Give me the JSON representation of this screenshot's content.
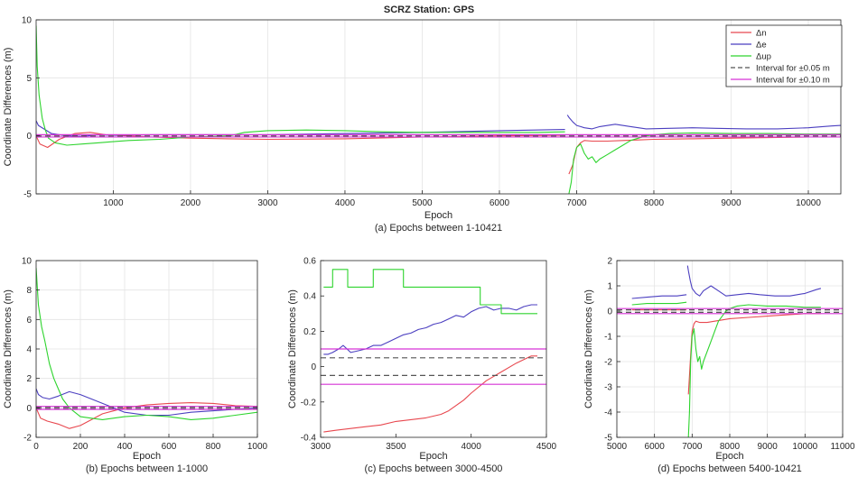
{
  "figure_title": "SCRZ Station: GPS",
  "colors": {
    "dn": "#e8484f",
    "de": "#4b3fc0",
    "dup": "#2ed42e",
    "interval005": "#555555",
    "interval010": "#d633d6",
    "grid": "#e4e4e4",
    "axis": "#262626"
  },
  "legend": {
    "items": [
      {
        "label": "Δn",
        "color": "#e8484f",
        "style": "solid"
      },
      {
        "label": "Δe",
        "color": "#4b3fc0",
        "style": "solid"
      },
      {
        "label": "Δup",
        "color": "#2ed42e",
        "style": "solid"
      },
      {
        "label": "Interval for ±0.05 m",
        "color": "#555555",
        "style": "dashed"
      },
      {
        "label": "Interval for ±0.10 m",
        "color": "#d633d6",
        "style": "solid"
      }
    ],
    "placement": "top-right (panel a)"
  },
  "chart_data": [
    {
      "id": "a",
      "type": "line",
      "caption": "(a) Epochs between 1-10421",
      "xlabel": "Epoch",
      "ylabel": "Coordinate Differences (m)",
      "xlim": [
        1,
        10421
      ],
      "ylim": [
        -5,
        10
      ],
      "xticks": [
        1000,
        2000,
        3000,
        4000,
        5000,
        6000,
        7000,
        8000,
        9000,
        10000
      ],
      "yticks": [
        -5,
        0,
        5,
        10
      ],
      "grid": true,
      "intervals": [
        0.05,
        0.1
      ],
      "series": [
        {
          "name": "Δn",
          "x": [
            1,
            50,
            150,
            300,
            500,
            700,
            900,
            1200,
            1500,
            2000,
            2500,
            3000,
            4000,
            5000,
            6000,
            6850
          ],
          "y": [
            0.0,
            -0.7,
            -1.0,
            -0.3,
            0.2,
            0.3,
            0.1,
            0.0,
            -0.1,
            -0.2,
            -0.25,
            -0.3,
            -0.25,
            -0.1,
            0.0,
            0.05
          ]
        },
        {
          "name": "Δn",
          "x": [
            6900,
            6950,
            7000,
            7050,
            7100,
            7200,
            7400,
            7600,
            7800,
            8000,
            8500,
            9000,
            9500,
            10000,
            10421
          ],
          "y": [
            -3.3,
            -2.5,
            -1.0,
            -0.6,
            -0.4,
            -0.45,
            -0.45,
            -0.4,
            -0.35,
            -0.3,
            -0.25,
            -0.2,
            -0.15,
            -0.1,
            -0.1
          ]
        },
        {
          "name": "Δe",
          "x": [
            1,
            30,
            100,
            200,
            400,
            600,
            800,
            1000,
            1500,
            2000,
            2500,
            3000,
            4000,
            5000,
            6000,
            6850
          ],
          "y": [
            1.3,
            0.9,
            0.6,
            0.2,
            0.0,
            -0.05,
            0.1,
            0.05,
            0.1,
            0.1,
            0.1,
            0.1,
            0.2,
            0.3,
            0.45,
            0.55
          ]
        },
        {
          "name": "Δe",
          "x": [
            6880,
            6900,
            6950,
            7000,
            7050,
            7100,
            7200,
            7300,
            7500,
            7700,
            7900,
            8200,
            8500,
            8800,
            9200,
            9600,
            10000,
            10300,
            10421
          ],
          "y": [
            1.8,
            1.6,
            1.2,
            0.9,
            0.8,
            0.7,
            0.6,
            0.8,
            1.0,
            0.8,
            0.6,
            0.65,
            0.7,
            0.65,
            0.6,
            0.6,
            0.7,
            0.85,
            0.9
          ]
        },
        {
          "name": "Δup",
          "x": [
            1,
            15,
            40,
            80,
            120,
            160,
            250,
            400,
            600,
            800,
            1000,
            1200,
            1600,
            2000,
            2500,
            2700,
            3000,
            3500,
            4000,
            4500,
            5000,
            5500,
            6000,
            6500,
            6850
          ],
          "y": [
            9.5,
            6.0,
            3.5,
            1.5,
            0.5,
            -0.2,
            -0.6,
            -0.8,
            -0.7,
            -0.6,
            -0.5,
            -0.4,
            -0.3,
            -0.1,
            0.0,
            0.3,
            0.45,
            0.5,
            0.45,
            0.35,
            0.3,
            0.3,
            0.3,
            0.3,
            0.35
          ]
        },
        {
          "name": "Δup",
          "x": [
            6900,
            6930,
            6960,
            7000,
            7050,
            7100,
            7150,
            7200,
            7250,
            7300,
            7400,
            7500,
            7600,
            7700,
            7800,
            7900,
            8000,
            8200,
            8500,
            9000,
            9500,
            10000,
            10421
          ],
          "y": [
            -5.0,
            -4.0,
            -2.0,
            -1.0,
            -0.7,
            -1.5,
            -2.0,
            -1.8,
            -2.3,
            -2.0,
            -1.6,
            -1.2,
            -0.8,
            -0.4,
            -0.2,
            0.0,
            0.1,
            0.2,
            0.25,
            0.2,
            0.2,
            0.15,
            0.15
          ]
        }
      ]
    },
    {
      "id": "b",
      "type": "line",
      "caption": "(b) Epochs between 1-1000",
      "xlabel": "Epoch",
      "ylabel": "Coordinate Differences (m)",
      "xlim": [
        0,
        1000
      ],
      "ylim": [
        -2,
        10
      ],
      "xticks": [
        0,
        200,
        400,
        600,
        800,
        1000
      ],
      "yticks": [
        -2,
        0,
        2,
        4,
        6,
        8,
        10
      ],
      "grid": true,
      "intervals": [
        0.05,
        0.1
      ],
      "series": [
        {
          "name": "Δn",
          "x": [
            0,
            20,
            50,
            100,
            150,
            200,
            250,
            300,
            400,
            500,
            600,
            700,
            800,
            900,
            1000
          ],
          "y": [
            0.0,
            -0.7,
            -0.9,
            -1.1,
            -1.4,
            -1.2,
            -0.8,
            -0.4,
            0.0,
            0.2,
            0.3,
            0.35,
            0.3,
            0.15,
            0.1
          ]
        },
        {
          "name": "Δe",
          "x": [
            0,
            10,
            30,
            60,
            100,
            150,
            200,
            250,
            300,
            350,
            400,
            500,
            600,
            700,
            800,
            900,
            1000
          ],
          "y": [
            1.3,
            0.9,
            0.7,
            0.6,
            0.8,
            1.1,
            0.9,
            0.6,
            0.3,
            0.0,
            -0.3,
            -0.5,
            -0.5,
            -0.3,
            -0.2,
            -0.1,
            0.0
          ]
        },
        {
          "name": "Δup",
          "x": [
            0,
            10,
            25,
            40,
            60,
            80,
            100,
            120,
            150,
            200,
            250,
            300,
            400,
            500,
            600,
            700,
            800,
            900,
            1000
          ],
          "y": [
            9.5,
            7.0,
            5.5,
            4.5,
            3.0,
            2.0,
            1.3,
            0.6,
            0.0,
            -0.6,
            -0.7,
            -0.8,
            -0.6,
            -0.5,
            -0.6,
            -0.8,
            -0.7,
            -0.5,
            -0.3
          ]
        }
      ]
    },
    {
      "id": "c",
      "type": "line",
      "caption": "(c) Epochs between 3000-4500",
      "xlabel": "Epoch",
      "ylabel": "Coordinate Differences (m)",
      "xlim": [
        3000,
        4500
      ],
      "ylim": [
        -0.4,
        0.6
      ],
      "xticks": [
        3000,
        3500,
        4000,
        4500
      ],
      "yticks": [
        -0.4,
        -0.2,
        0,
        0.2,
        0.4,
        0.6
      ],
      "grid": false,
      "intervals": [
        0.05,
        0.1
      ],
      "series": [
        {
          "name": "Δn",
          "x": [
            3020,
            3100,
            3200,
            3300,
            3400,
            3500,
            3600,
            3700,
            3800,
            3850,
            3900,
            3950,
            4000,
            4100,
            4200,
            4300,
            4400,
            4440
          ],
          "y": [
            -0.37,
            -0.36,
            -0.35,
            -0.34,
            -0.33,
            -0.31,
            -0.3,
            -0.29,
            -0.27,
            -0.25,
            -0.22,
            -0.19,
            -0.15,
            -0.08,
            -0.03,
            0.02,
            0.06,
            0.06
          ]
        },
        {
          "name": "Δe",
          "x": [
            3020,
            3050,
            3080,
            3120,
            3150,
            3200,
            3250,
            3300,
            3350,
            3400,
            3450,
            3500,
            3550,
            3600,
            3650,
            3700,
            3750,
            3800,
            3850,
            3900,
            3950,
            4000,
            4050,
            4100,
            4150,
            4200,
            4250,
            4300,
            4350,
            4400,
            4440
          ],
          "y": [
            0.07,
            0.07,
            0.08,
            0.1,
            0.12,
            0.08,
            0.09,
            0.1,
            0.12,
            0.12,
            0.14,
            0.16,
            0.18,
            0.19,
            0.21,
            0.22,
            0.24,
            0.25,
            0.27,
            0.29,
            0.28,
            0.31,
            0.33,
            0.34,
            0.32,
            0.33,
            0.33,
            0.32,
            0.34,
            0.35,
            0.35
          ]
        },
        {
          "name": "Δup",
          "step": true,
          "x": [
            3020,
            3080,
            3080,
            3180,
            3180,
            3350,
            3350,
            3550,
            3550,
            3800,
            3800,
            4060,
            4060,
            4200,
            4200,
            4440
          ],
          "y": [
            0.45,
            0.45,
            0.55,
            0.55,
            0.45,
            0.45,
            0.55,
            0.55,
            0.45,
            0.45,
            0.45,
            0.45,
            0.35,
            0.35,
            0.3,
            0.3
          ]
        }
      ]
    },
    {
      "id": "d",
      "type": "line",
      "caption": "(d) Epochs between 5400-10421",
      "xlabel": "Epoch",
      "ylabel": "Coordinate Differences (m)",
      "xlim": [
        5000,
        11000
      ],
      "ylim": [
        -5,
        2
      ],
      "xticks": [
        5000,
        6000,
        7000,
        8000,
        9000,
        10000,
        11000
      ],
      "yticks": [
        -5,
        -4,
        -3,
        -2,
        -1,
        0,
        1,
        2
      ],
      "grid": true,
      "intervals": [
        0.05,
        0.1
      ],
      "series": [
        {
          "name": "Δn",
          "x": [
            5400,
            6000,
            6500,
            6850
          ],
          "y": [
            0.05,
            0.05,
            0.05,
            0.05
          ]
        },
        {
          "name": "Δn",
          "x": [
            6900,
            6950,
            7000,
            7050,
            7100,
            7200,
            7400,
            7600,
            7800,
            8000,
            8500,
            9000,
            9500,
            10000,
            10421
          ],
          "y": [
            -3.3,
            -2.0,
            -0.8,
            -0.5,
            -0.4,
            -0.45,
            -0.45,
            -0.4,
            -0.35,
            -0.3,
            -0.25,
            -0.2,
            -0.15,
            -0.1,
            -0.1
          ]
        },
        {
          "name": "Δe",
          "x": [
            5400,
            5800,
            6200,
            6600,
            6850
          ],
          "y": [
            0.5,
            0.55,
            0.6,
            0.6,
            0.65
          ]
        },
        {
          "name": "Δe",
          "x": [
            6880,
            6900,
            6950,
            7000,
            7050,
            7100,
            7200,
            7300,
            7500,
            7700,
            7900,
            8200,
            8500,
            8800,
            9200,
            9600,
            10000,
            10300,
            10421
          ],
          "y": [
            1.8,
            1.6,
            1.2,
            0.9,
            0.8,
            0.7,
            0.6,
            0.8,
            1.0,
            0.8,
            0.6,
            0.65,
            0.7,
            0.65,
            0.6,
            0.6,
            0.7,
            0.85,
            0.9
          ]
        },
        {
          "name": "Δup",
          "x": [
            5400,
            5800,
            6200,
            6600,
            6850
          ],
          "y": [
            0.25,
            0.3,
            0.3,
            0.3,
            0.35
          ]
        },
        {
          "name": "Δup",
          "x": [
            6900,
            6930,
            6960,
            7000,
            7050,
            7100,
            7150,
            7200,
            7250,
            7300,
            7400,
            7500,
            7600,
            7700,
            7800,
            7900,
            8000,
            8200,
            8500,
            9000,
            9500,
            10000,
            10421
          ],
          "y": [
            -5.0,
            -4.0,
            -2.0,
            -1.0,
            -0.7,
            -1.5,
            -2.0,
            -1.8,
            -2.3,
            -2.0,
            -1.6,
            -1.2,
            -0.8,
            -0.4,
            -0.2,
            0.0,
            0.1,
            0.2,
            0.25,
            0.2,
            0.2,
            0.15,
            0.15
          ]
        }
      ]
    }
  ]
}
